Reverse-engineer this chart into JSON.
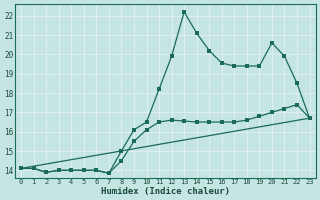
{
  "xlabel": "Humidex (Indice chaleur)",
  "xlim_min": -0.5,
  "xlim_max": 23.5,
  "ylim_min": 13.6,
  "ylim_max": 22.6,
  "xticks": [
    0,
    1,
    2,
    3,
    4,
    5,
    6,
    7,
    8,
    9,
    10,
    11,
    12,
    13,
    14,
    15,
    16,
    17,
    18,
    19,
    20,
    21,
    22,
    23
  ],
  "yticks": [
    14,
    15,
    16,
    17,
    18,
    19,
    20,
    21,
    22
  ],
  "bg_color": "#c5e5e2",
  "line_color": "#1a6b5a",
  "grid_color": "#e0f0ee",
  "line1_x": [
    0,
    1,
    2,
    3,
    4,
    5,
    6,
    7,
    8,
    9,
    10,
    11,
    12,
    13,
    14,
    15,
    16,
    17,
    18,
    19,
    20,
    21,
    22,
    23
  ],
  "line1_y": [
    14.1,
    14.1,
    13.9,
    14.0,
    14.0,
    14.0,
    14.0,
    13.85,
    15.0,
    16.1,
    16.5,
    18.2,
    19.9,
    22.2,
    21.1,
    20.2,
    19.55,
    19.4,
    19.4,
    19.4,
    20.6,
    19.9,
    18.5,
    16.7
  ],
  "line2_x": [
    0,
    1,
    2,
    3,
    4,
    5,
    6,
    7,
    8,
    9,
    10,
    11,
    12,
    13,
    14,
    15,
    16,
    17,
    18,
    19,
    20,
    21,
    22,
    23
  ],
  "line2_y": [
    14.1,
    14.1,
    13.9,
    14.0,
    14.0,
    14.0,
    14.0,
    13.85,
    14.5,
    15.5,
    16.1,
    16.5,
    16.6,
    16.55,
    16.5,
    16.5,
    16.5,
    16.5,
    16.6,
    16.8,
    17.0,
    17.2,
    17.4,
    16.7
  ],
  "line3_x": [
    0,
    23
  ],
  "line3_y": [
    14.1,
    16.7
  ]
}
